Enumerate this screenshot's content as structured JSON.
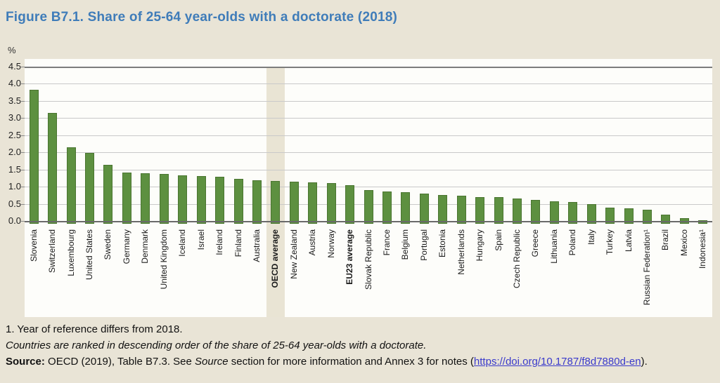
{
  "title": "Figure B7.1. Share of 25-64 year-olds with a doctorate (2018)",
  "chart_data": {
    "type": "bar",
    "title": "Figure B7.1. Share of 25-64 year-olds with a doctorate (2018)",
    "unit_label": "%",
    "ylim": [
      0,
      4.5
    ],
    "ytick_labels": [
      "4.5",
      "4.0",
      "3.5",
      "3.0",
      "2.5",
      "2.0",
      "1.5",
      "1.0",
      "0.5",
      "0.0"
    ],
    "grid": true,
    "legend": "none",
    "categories": [
      "Slovenia",
      "Switzerland",
      "Luxembourg",
      "United States",
      "Sweden",
      "Germany",
      "Denmark",
      "United Kingdom",
      "Iceland",
      "Israel",
      "Ireland",
      "Finland",
      "Australia",
      "OECD average",
      "New Zealand",
      "Austria",
      "Norway",
      "EU23 average",
      "Slovak Republic",
      "France",
      "Belgium",
      "Portugal",
      "Estonia",
      "Netherlands",
      "Hungary",
      "Spain",
      "Czech Republic",
      "Greece",
      "Lithuania",
      "Poland",
      "Italy",
      "Turkey",
      "Latvia",
      "Russian Federation¹",
      "Brazil",
      "Mexico",
      "Indonesia¹"
    ],
    "values": [
      3.82,
      3.15,
      2.15,
      1.98,
      1.63,
      1.41,
      1.39,
      1.37,
      1.34,
      1.31,
      1.28,
      1.23,
      1.18,
      1.17,
      1.15,
      1.13,
      1.11,
      1.05,
      0.9,
      0.87,
      0.83,
      0.79,
      0.75,
      0.73,
      0.7,
      0.69,
      0.66,
      0.62,
      0.58,
      0.55,
      0.5,
      0.39,
      0.37,
      0.32,
      0.19,
      0.08,
      0.03
    ],
    "highlight_category": "OECD average",
    "bold_categories": [
      "OECD average",
      "EU23 average"
    ],
    "colors": {
      "bar": "#5d9040",
      "bar_border": "#4a7530",
      "highlight_band": "#e9e4d4",
      "page_background": "#e9e4d6",
      "plot_background": "#fdfdfa",
      "title_blue": "#3f7cb9",
      "link_blue": "#3a3acb",
      "gridline": "#c9c9c9",
      "axis_line": "#6a6a6a"
    }
  },
  "footnotes": {
    "note1": "1. Year of reference differs from 2018.",
    "ranking_note": "Countries are ranked in descending order of the share of 25-64 year-olds with a doctorate.",
    "source_prefix": "Source:",
    "source_body_1": " OECD (2019), Table B7.3. See ",
    "source_italic": "Source",
    "source_body_2": " section for more information and Annex 3 for notes (",
    "source_link": "https://doi.org/10.1787/f8d7880d-en",
    "source_suffix": ")."
  }
}
